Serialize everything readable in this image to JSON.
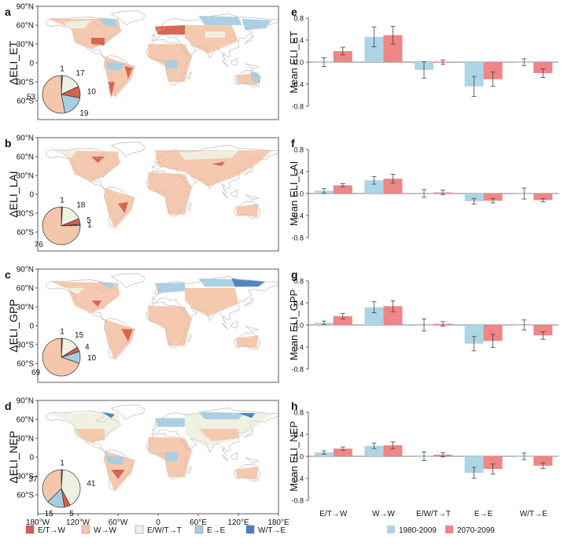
{
  "colors": {
    "E/T→W": "#d6604d",
    "W→W": "#f4c6ab",
    "E/W/T→T": "#eef1e2",
    "E→E": "#a8cde2",
    "W/T→E": "#4a7fc0",
    "bar1980": "#acd5e5",
    "bar2070": "#ef8585"
  },
  "map_axis": {
    "lat_labels": [
      "90°N",
      "60°N",
      "30°N",
      "0",
      "30°S",
      "60°S"
    ],
    "lon_labels": [
      "180°W",
      "120°W",
      "60°W",
      "0",
      "60°E",
      "120°E",
      "180°E"
    ]
  },
  "map_legend": [
    "E/T→W",
    "W→W",
    "E/W/T→T",
    "E→E",
    "W/T→E"
  ],
  "bar_legend": [
    "1980-2009",
    "2070-2099"
  ],
  "panels": [
    {
      "letter": "a",
      "map_ylabel": "ΔELI_ET",
      "pie": [
        {
          "cls": "E/T→W",
          "value": 10,
          "label": "10"
        },
        {
          "cls": "W→W",
          "value": 53,
          "label": "53"
        },
        {
          "cls": "E/W/T→T",
          "value": 17,
          "label": "17"
        },
        {
          "cls": "E→E",
          "value": 19,
          "label": "19"
        },
        {
          "cls": "W/T→E",
          "value": 1,
          "label": "1"
        }
      ]
    },
    {
      "letter": "b",
      "map_ylabel": "ΔELI_LAI",
      "pie": [
        {
          "cls": "E/T→W",
          "value": 5,
          "label": "5"
        },
        {
          "cls": "W→W",
          "value": 76,
          "label": "76"
        },
        {
          "cls": "E/W/T→T",
          "value": 18,
          "label": "18"
        },
        {
          "cls": "E→E",
          "value": 1,
          "label": "1"
        },
        {
          "cls": "W/T→E",
          "value": 1,
          "label": "1"
        }
      ]
    },
    {
      "letter": "c",
      "map_ylabel": "ΔELI_GPP",
      "pie": [
        {
          "cls": "E/T→W",
          "value": 4,
          "label": "4"
        },
        {
          "cls": "W→W",
          "value": 69,
          "label": "69"
        },
        {
          "cls": "E/W/T→T",
          "value": 15,
          "label": "15"
        },
        {
          "cls": "E→E",
          "value": 10,
          "label": "10"
        },
        {
          "cls": "W/T→E",
          "value": 1,
          "label": "1"
        }
      ]
    },
    {
      "letter": "d",
      "map_ylabel": "ΔELI_NEP",
      "pie": [
        {
          "cls": "E/T→W",
          "value": 5,
          "label": "5"
        },
        {
          "cls": "W→W",
          "value": 37,
          "label": "37"
        },
        {
          "cls": "E/W/T→T",
          "value": 41,
          "label": "41"
        },
        {
          "cls": "E→E",
          "value": 15,
          "label": "15"
        },
        {
          "cls": "W/T→E",
          "value": 1,
          "label": "1"
        }
      ]
    }
  ],
  "chart_data": [
    {
      "type": "bar",
      "letter": "e",
      "ylabel": "Mean ELI_ET",
      "categories": [
        "E/T→W",
        "W→W",
        "E/W/T→T",
        "E→E",
        "W/T→E"
      ],
      "ylim": [
        -0.8,
        0.8
      ],
      "yticks": [
        "0.8",
        "0.4",
        "0.0",
        "-0.4",
        "-0.8"
      ],
      "series": [
        {
          "name": "1980-2009",
          "values": [
            0.0,
            0.46,
            -0.14,
            -0.44,
            0.0
          ],
          "errors": [
            0.08,
            0.18,
            0.15,
            0.18,
            0.06
          ]
        },
        {
          "name": "2070-2099",
          "values": [
            0.2,
            0.49,
            0.0,
            -0.31,
            -0.2
          ],
          "errors": [
            0.07,
            0.16,
            0.04,
            0.13,
            0.08
          ]
        }
      ]
    },
    {
      "type": "bar",
      "letter": "f",
      "ylabel": "Mean ELI_LAI",
      "categories": [
        "E/T→W",
        "W→W",
        "E/W/T→T",
        "E→E",
        "W/T→E"
      ],
      "ylim": [
        -0.8,
        0.8
      ],
      "yticks": [
        "0.8",
        "0.4",
        "0.0",
        "-0.4",
        "-0.8"
      ],
      "series": [
        {
          "name": "1980-2009",
          "values": [
            0.05,
            0.24,
            0.0,
            -0.14,
            0.0
          ],
          "errors": [
            0.04,
            0.07,
            0.07,
            0.05,
            0.1
          ]
        },
        {
          "name": "2070-2099",
          "values": [
            0.15,
            0.27,
            0.02,
            -0.13,
            -0.12
          ],
          "errors": [
            0.03,
            0.08,
            0.04,
            0.04,
            0.03
          ]
        }
      ]
    },
    {
      "type": "bar",
      "letter": "g",
      "ylabel": "Mean ELI_GPP",
      "categories": [
        "E/T→W",
        "W→W",
        "E/W/T→T",
        "E→E",
        "W/T→E"
      ],
      "ylim": [
        -0.8,
        0.8
      ],
      "yticks": [
        "0.8",
        "0.4",
        "0.0",
        "-0.4",
        "-0.8"
      ],
      "series": [
        {
          "name": "1980-2009",
          "values": [
            0.04,
            0.32,
            0.0,
            -0.34,
            0.0
          ],
          "errors": [
            0.03,
            0.1,
            0.11,
            0.13,
            0.09
          ]
        },
        {
          "name": "2070-2099",
          "values": [
            0.16,
            0.34,
            0.02,
            -0.29,
            -0.19
          ],
          "errors": [
            0.05,
            0.1,
            0.04,
            0.12,
            0.07
          ]
        }
      ]
    },
    {
      "type": "bar",
      "letter": "h",
      "ylabel": "Mean ELI_NEP",
      "categories": [
        "E/T→W",
        "W→W",
        "E/W/T→T",
        "E→E",
        "W/T→E"
      ],
      "ylim": [
        -0.8,
        0.8
      ],
      "yticks": [
        "0.8",
        "0.4",
        "0.0",
        "-0.4",
        "-0.8"
      ],
      "xlabels": [
        "E/T→W",
        "W→W",
        "E/W/T→T",
        "E→E",
        "W/T→E"
      ],
      "series": [
        {
          "name": "1980-2009",
          "values": [
            0.07,
            0.19,
            0.0,
            -0.3,
            0.0
          ],
          "errors": [
            0.03,
            0.05,
            0.08,
            0.1,
            0.06
          ]
        },
        {
          "name": "2070-2099",
          "values": [
            0.14,
            0.2,
            0.03,
            -0.23,
            -0.17
          ],
          "errors": [
            0.03,
            0.06,
            0.04,
            0.09,
            0.05
          ]
        }
      ]
    }
  ]
}
